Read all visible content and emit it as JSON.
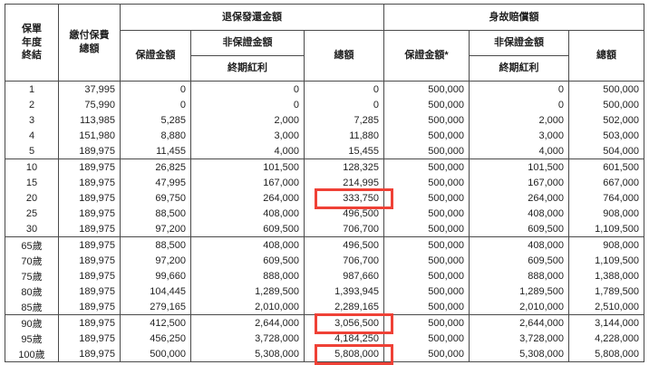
{
  "colors": {
    "highlight_red": "#ef4136",
    "grid": "#4a4a4a"
  },
  "table": {
    "header": {
      "policy_year": "保單\n年度\n終結",
      "premium_total": "繳付保費\n總額",
      "group_surrender": "退保發還金額",
      "group_death": "身故賠償額",
      "guaranteed": "保證金額",
      "guaranteed_star": "保證金額*",
      "non_guaranteed": "非保證金額",
      "terminal_dividend": "終期紅利",
      "total": "總額"
    },
    "column_keys": [
      "year",
      "premium",
      "sv_guaranteed",
      "sv_terminal",
      "sv_total",
      "db_guaranteed",
      "db_terminal",
      "db_total"
    ],
    "group_start_years": [
      "10",
      "65歲",
      "90歲"
    ],
    "highlights": [
      {
        "year": "20",
        "field": "sv_total"
      },
      {
        "year": "90歲",
        "field": "sv_total"
      },
      {
        "year": "100歲",
        "field": "sv_total"
      }
    ],
    "rows": [
      {
        "year": "1",
        "premium": "37,995",
        "sv_guaranteed": "0",
        "sv_terminal": "0",
        "sv_total": "0",
        "db_guaranteed": "500,000",
        "db_terminal": "0",
        "db_total": "500,000"
      },
      {
        "year": "2",
        "premium": "75,990",
        "sv_guaranteed": "0",
        "sv_terminal": "0",
        "sv_total": "0",
        "db_guaranteed": "500,000",
        "db_terminal": "0",
        "db_total": "500,000"
      },
      {
        "year": "3",
        "premium": "113,985",
        "sv_guaranteed": "5,285",
        "sv_terminal": "2,000",
        "sv_total": "7,285",
        "db_guaranteed": "500,000",
        "db_terminal": "2,000",
        "db_total": "502,000"
      },
      {
        "year": "4",
        "premium": "151,980",
        "sv_guaranteed": "8,880",
        "sv_terminal": "3,000",
        "sv_total": "11,880",
        "db_guaranteed": "500,000",
        "db_terminal": "3,000",
        "db_total": "503,000"
      },
      {
        "year": "5",
        "premium": "189,975",
        "sv_guaranteed": "11,455",
        "sv_terminal": "4,000",
        "sv_total": "15,455",
        "db_guaranteed": "500,000",
        "db_terminal": "4,000",
        "db_total": "504,000"
      },
      {
        "year": "10",
        "premium": "189,975",
        "sv_guaranteed": "26,825",
        "sv_terminal": "101,500",
        "sv_total": "128,325",
        "db_guaranteed": "500,000",
        "db_terminal": "101,500",
        "db_total": "601,500"
      },
      {
        "year": "15",
        "premium": "189,975",
        "sv_guaranteed": "47,995",
        "sv_terminal": "167,000",
        "sv_total": "214,995",
        "db_guaranteed": "500,000",
        "db_terminal": "167,000",
        "db_total": "667,000"
      },
      {
        "year": "20",
        "premium": "189,975",
        "sv_guaranteed": "69,750",
        "sv_terminal": "264,000",
        "sv_total": "333,750",
        "db_guaranteed": "500,000",
        "db_terminal": "264,000",
        "db_total": "764,000"
      },
      {
        "year": "25",
        "premium": "189,975",
        "sv_guaranteed": "88,500",
        "sv_terminal": "408,000",
        "sv_total": "496,500",
        "db_guaranteed": "500,000",
        "db_terminal": "408,000",
        "db_total": "908,000"
      },
      {
        "year": "30",
        "premium": "189,975",
        "sv_guaranteed": "97,200",
        "sv_terminal": "609,500",
        "sv_total": "706,700",
        "db_guaranteed": "500,000",
        "db_terminal": "609,500",
        "db_total": "1,109,500"
      },
      {
        "year": "65歲",
        "premium": "189,975",
        "sv_guaranteed": "88,500",
        "sv_terminal": "408,000",
        "sv_total": "496,500",
        "db_guaranteed": "500,000",
        "db_terminal": "408,000",
        "db_total": "908,000"
      },
      {
        "year": "70歲",
        "premium": "189,975",
        "sv_guaranteed": "97,200",
        "sv_terminal": "609,500",
        "sv_total": "706,700",
        "db_guaranteed": "500,000",
        "db_terminal": "609,500",
        "db_total": "1,109,500"
      },
      {
        "year": "75歲",
        "premium": "189,975",
        "sv_guaranteed": "99,660",
        "sv_terminal": "888,000",
        "sv_total": "987,660",
        "db_guaranteed": "500,000",
        "db_terminal": "888,000",
        "db_total": "1,388,000"
      },
      {
        "year": "80歲",
        "premium": "189,975",
        "sv_guaranteed": "104,445",
        "sv_terminal": "1,289,500",
        "sv_total": "1,393,945",
        "db_guaranteed": "500,000",
        "db_terminal": "1,289,500",
        "db_total": "1,789,500"
      },
      {
        "year": "85歲",
        "premium": "189,975",
        "sv_guaranteed": "279,165",
        "sv_terminal": "2,010,000",
        "sv_total": "2,289,165",
        "db_guaranteed": "500,000",
        "db_terminal": "2,010,000",
        "db_total": "2,510,000"
      },
      {
        "year": "90歲",
        "premium": "189,975",
        "sv_guaranteed": "412,500",
        "sv_terminal": "2,644,000",
        "sv_total": "3,056,500",
        "db_guaranteed": "500,000",
        "db_terminal": "2,644,000",
        "db_total": "3,144,000"
      },
      {
        "year": "95歲",
        "premium": "189,975",
        "sv_guaranteed": "456,250",
        "sv_terminal": "3,728,000",
        "sv_total": "4,184,250",
        "db_guaranteed": "500,000",
        "db_terminal": "3,728,000",
        "db_total": "4,228,000"
      },
      {
        "year": "100歲",
        "premium": "189,975",
        "sv_guaranteed": "500,000",
        "sv_terminal": "5,308,000",
        "sv_total": "5,808,000",
        "db_guaranteed": "500,000",
        "db_terminal": "5,308,000",
        "db_total": "5,808,000"
      }
    ]
  }
}
